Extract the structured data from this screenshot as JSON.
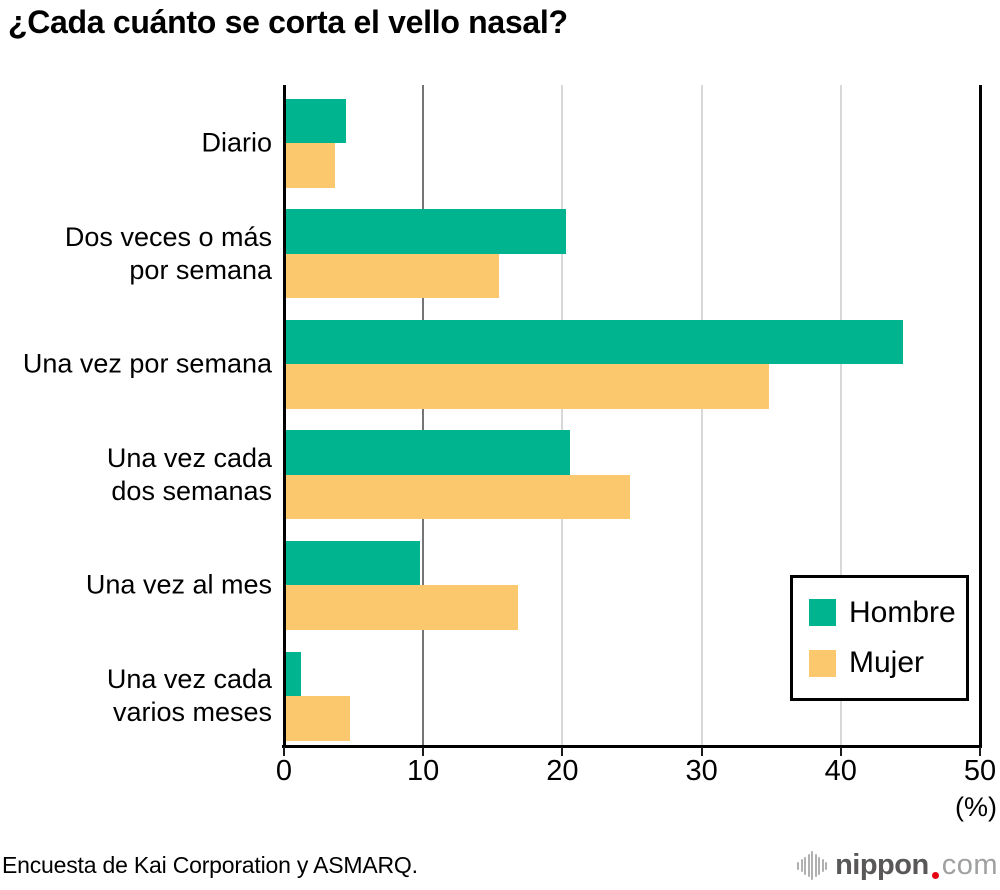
{
  "title": "¿Cada cuánto se corta el vello nasal?",
  "source_note": "Encuesta de Kai Corporation y ASMARQ.",
  "logo": {
    "icon": "soundwave-icon",
    "brand": "nippon",
    "dot": ".",
    "suffix": "com"
  },
  "chart_data": {
    "type": "bar",
    "orientation": "horizontal",
    "title": "¿Cada cuánto se corta el vello nasal?",
    "categories": [
      "Diario",
      "Dos veces o más\npor semana",
      "Una vez por semana",
      "Una vez cada\ndos semanas",
      "Una vez al mes",
      "Una vez cada\nvarios meses"
    ],
    "series": [
      {
        "name": "Hombre",
        "color": "#00b48f",
        "values": [
          4.3,
          20.1,
          44.3,
          20.4,
          9.6,
          1.1
        ]
      },
      {
        "name": "Mujer",
        "color": "#fbc86d",
        "values": [
          3.5,
          15.3,
          34.7,
          24.7,
          16.7,
          4.6
        ]
      }
    ],
    "xlabel": "(%)",
    "xlim": [
      0,
      50
    ],
    "xticks": [
      0,
      10,
      20,
      30,
      40,
      50
    ],
    "grid": true,
    "legend_position": "bottom-right"
  },
  "colors": {
    "axis": "#000000",
    "grid_first": "#757575",
    "grid_light": "#d8d8d8",
    "hombre": "#00b48f",
    "mujer": "#fbc86d",
    "logo_text": "#595757",
    "logo_dot": "#e60012",
    "logo_suffix": "#9fa0a0",
    "logo_icon": "#b0b0b0"
  }
}
